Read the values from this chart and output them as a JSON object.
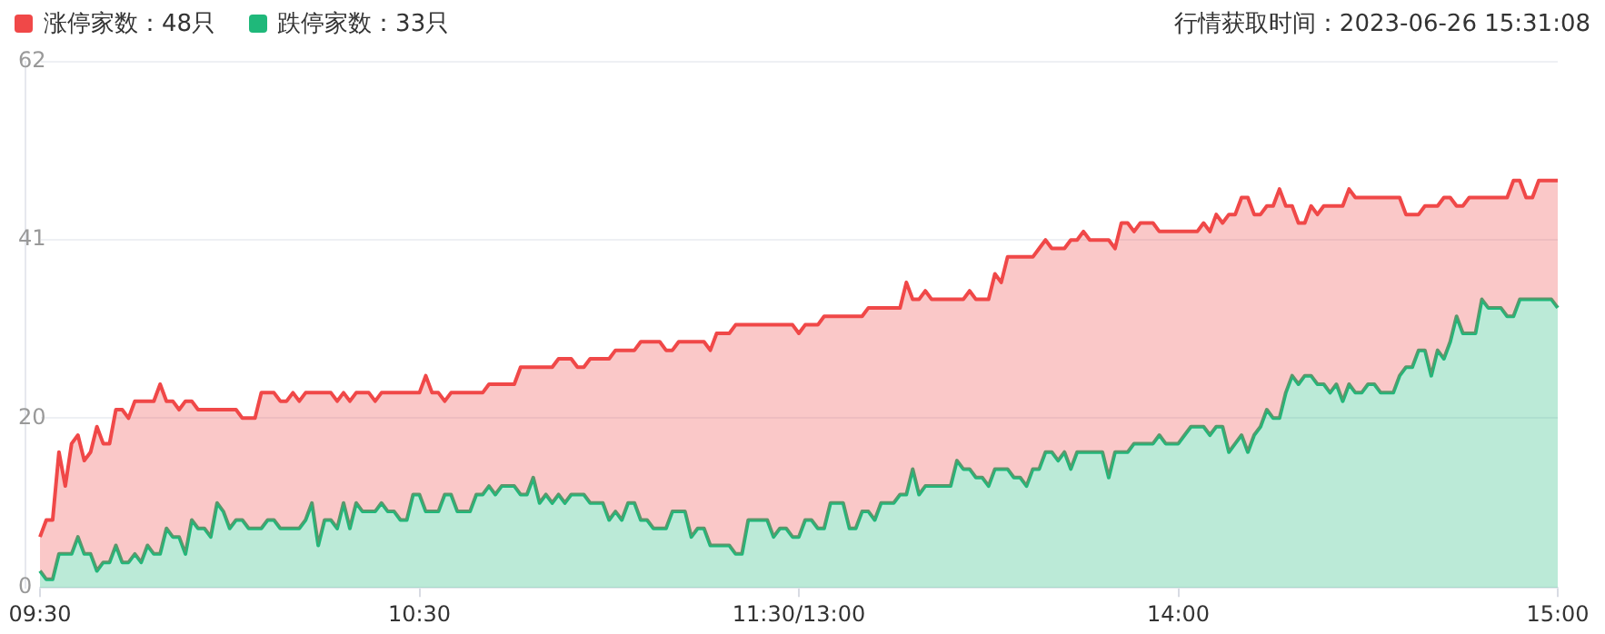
{
  "chart_data": {
    "type": "area",
    "annotations": [
      "行情获取时间：2023-06-26 15:31:08"
    ],
    "legend": "top left",
    "grid": "y",
    "marker": "none",
    "ylim": [
      0,
      62
    ],
    "yticks": [
      0,
      20,
      41,
      62
    ],
    "categories": [
      "09:30",
      null,
      null,
      null,
      null,
      null,
      null,
      null,
      null,
      null,
      null,
      null,
      null,
      null,
      null,
      null,
      null,
      null,
      null,
      null,
      null,
      null,
      null,
      null,
      null,
      null,
      null,
      null,
      null,
      null,
      null,
      null,
      null,
      null,
      null,
      null,
      null,
      null,
      null,
      null,
      null,
      null,
      null,
      null,
      null,
      null,
      null,
      null,
      null,
      null,
      null,
      null,
      null,
      null,
      null,
      null,
      null,
      null,
      null,
      null,
      "10:30",
      null,
      null,
      null,
      null,
      null,
      null,
      null,
      null,
      null,
      null,
      null,
      null,
      null,
      null,
      null,
      null,
      null,
      null,
      null,
      null,
      null,
      null,
      null,
      null,
      null,
      null,
      null,
      null,
      null,
      null,
      null,
      null,
      null,
      null,
      null,
      null,
      null,
      null,
      null,
      null,
      null,
      null,
      null,
      null,
      null,
      null,
      null,
      null,
      null,
      null,
      null,
      null,
      null,
      null,
      null,
      null,
      null,
      null,
      null,
      "11:30/13:00",
      null,
      null,
      null,
      null,
      null,
      null,
      null,
      null,
      null,
      null,
      null,
      null,
      null,
      null,
      null,
      null,
      null,
      null,
      null,
      null,
      null,
      null,
      null,
      null,
      null,
      null,
      null,
      null,
      null,
      null,
      null,
      null,
      null,
      null,
      null,
      null,
      null,
      null,
      null,
      null,
      null,
      null,
      null,
      null,
      null,
      null,
      null,
      null,
      null,
      null,
      null,
      null,
      null,
      null,
      null,
      null,
      null,
      null,
      null,
      "14:00",
      null,
      null,
      null,
      null,
      null,
      null,
      null,
      null,
      null,
      null,
      null,
      null,
      null,
      null,
      null,
      null,
      null,
      null,
      null,
      null,
      null,
      null,
      null,
      null,
      null,
      null,
      null,
      null,
      null,
      null,
      null,
      null,
      null,
      null,
      null,
      null,
      null,
      null,
      null,
      null,
      null,
      null,
      null,
      null,
      null,
      null,
      null,
      null,
      null,
      null,
      null,
      null,
      null,
      null,
      null,
      null,
      null,
      null,
      null,
      "15:00"
    ],
    "series": [
      {
        "name": "涨停家数：48只",
        "color": "#f04848",
        "values": [
          6,
          8,
          8,
          16,
          12,
          17,
          18,
          15,
          16,
          19,
          17,
          17,
          21,
          21,
          20,
          22,
          22,
          22,
          22,
          24,
          22,
          22,
          21,
          22,
          22,
          21,
          21,
          21,
          21,
          21,
          21,
          21,
          20,
          20,
          20,
          23,
          23,
          23,
          22,
          22,
          23,
          22,
          23,
          23,
          23,
          23,
          23,
          22,
          23,
          22,
          23,
          23,
          23,
          22,
          23,
          23,
          23,
          23,
          23,
          23,
          23,
          25,
          23,
          23,
          22,
          23,
          23,
          23,
          23,
          23,
          23,
          24,
          24,
          24,
          24,
          24,
          26,
          26,
          26,
          26,
          26,
          26,
          27,
          27,
          27,
          26,
          26,
          27,
          27,
          27,
          27,
          28,
          28,
          28,
          28,
          29,
          29,
          29,
          29,
          28,
          28,
          29,
          29,
          29,
          29,
          29,
          28,
          30,
          30,
          30,
          31,
          31,
          31,
          31,
          31,
          31,
          31,
          31,
          31,
          31,
          30,
          31,
          31,
          31,
          32,
          32,
          32,
          32,
          32,
          32,
          32,
          33,
          33,
          33,
          33,
          33,
          33,
          36,
          34,
          34,
          35,
          34,
          34,
          34,
          34,
          34,
          34,
          35,
          34,
          34,
          34,
          37,
          36,
          39,
          39,
          39,
          39,
          39,
          40,
          41,
          40,
          40,
          40,
          41,
          41,
          42,
          41,
          41,
          41,
          41,
          40,
          43,
          43,
          42,
          43,
          43,
          43,
          42,
          42,
          42,
          42,
          42,
          42,
          42,
          43,
          42,
          44,
          43,
          44,
          44,
          46,
          46,
          44,
          44,
          45,
          45,
          47,
          45,
          45,
          43,
          43,
          45,
          44,
          45,
          45,
          45,
          45,
          47,
          46,
          46,
          46,
          46,
          46,
          46,
          46,
          46,
          44,
          44,
          44,
          45,
          45,
          45,
          46,
          46,
          45,
          45,
          46,
          46,
          46,
          46,
          46,
          46,
          46,
          48,
          48,
          46,
          46,
          48,
          48,
          48,
          48
        ]
      },
      {
        "name": "跌停家数：33只",
        "color": "#1fb87a",
        "values": [
          2,
          1,
          1,
          4,
          4,
          4,
          6,
          4,
          4,
          2,
          3,
          3,
          5,
          3,
          3,
          4,
          3,
          5,
          4,
          4,
          7,
          6,
          6,
          4,
          8,
          7,
          7,
          6,
          10,
          9,
          7,
          8,
          8,
          7,
          7,
          7,
          8,
          8,
          7,
          7,
          7,
          7,
          8,
          10,
          5,
          8,
          8,
          7,
          10,
          7,
          10,
          9,
          9,
          9,
          10,
          9,
          9,
          8,
          8,
          11,
          11,
          9,
          9,
          9,
          11,
          11,
          9,
          9,
          9,
          11,
          11,
          12,
          11,
          12,
          12,
          12,
          11,
          11,
          13,
          10,
          11,
          10,
          11,
          10,
          11,
          11,
          11,
          10,
          10,
          10,
          8,
          9,
          8,
          10,
          10,
          8,
          8,
          7,
          7,
          7,
          9,
          9,
          9,
          6,
          7,
          7,
          5,
          5,
          5,
          5,
          4,
          4,
          8,
          8,
          8,
          8,
          6,
          7,
          7,
          6,
          6,
          8,
          8,
          7,
          7,
          10,
          10,
          10,
          7,
          7,
          9,
          9,
          8,
          10,
          10,
          10,
          11,
          11,
          14,
          11,
          12,
          12,
          12,
          12,
          12,
          15,
          14,
          14,
          13,
          13,
          12,
          14,
          14,
          14,
          13,
          13,
          12,
          14,
          14,
          16,
          16,
          15,
          16,
          14,
          16,
          16,
          16,
          16,
          16,
          13,
          16,
          16,
          16,
          17,
          17,
          17,
          17,
          18,
          17,
          17,
          17,
          18,
          19,
          19,
          19,
          18,
          19,
          19,
          16,
          17,
          18,
          16,
          18,
          19,
          21,
          20,
          20,
          23,
          25,
          24,
          25,
          25,
          24,
          24,
          23,
          24,
          22,
          24,
          23,
          23,
          24,
          24,
          23,
          23,
          23,
          25,
          26,
          26,
          28,
          28,
          25,
          28,
          27,
          29,
          32,
          30,
          30,
          30,
          34,
          33,
          33,
          33,
          32,
          32,
          34,
          34,
          34,
          34,
          34,
          34,
          33
        ]
      }
    ]
  }
}
